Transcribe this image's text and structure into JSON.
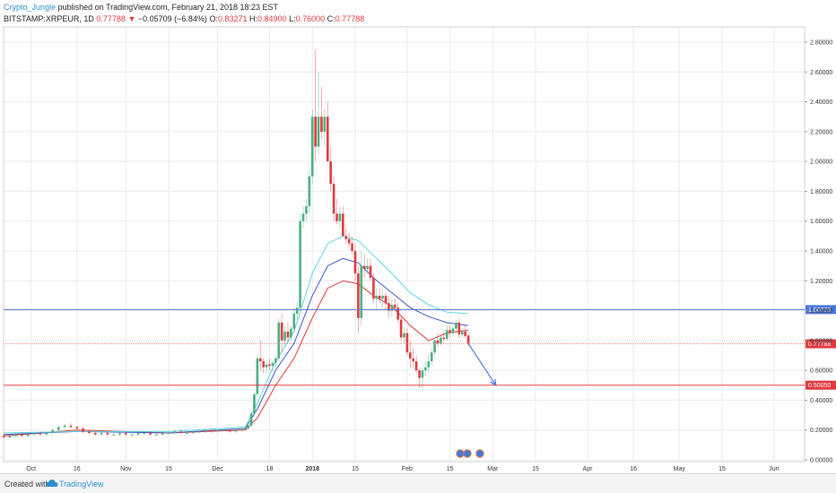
{
  "header": {
    "author": "Crypto_Jungle",
    "published_text": "published on TradingView.com, February 21, 2018 18:23 EST",
    "symbol": "BITSTAMP:XRPEUR, 1D",
    "last": "0.77788",
    "change": "−0.05709 (−6.84%)",
    "o_label": "O:",
    "o_val": "0.83271",
    "h_label": "H:",
    "h_val": "0.84900",
    "l_label": "L:",
    "l_val": "0.76000",
    "c_label": "C:",
    "c_val": "0.77788"
  },
  "footer": {
    "created_with": "Created with",
    "brand": "TradingView"
  },
  "colors": {
    "up": "#4caf82",
    "down": "#e03a3e",
    "grid": "#ececec",
    "ma_fast": "#e03a3e",
    "ma_mid": "#3a56c4",
    "ma_slow": "#5ed6e0",
    "support_line": "#4a78d8",
    "current_line": "#e98b8b",
    "target_line": "#e03a3e",
    "arrow": "#4a78d8"
  },
  "chart_data": {
    "type": "candlestick",
    "symbol": "BITSTAMP:XRPEUR",
    "interval": "1D",
    "x_tick_labels": [
      "Oct",
      "16",
      "Nov",
      "15",
      "Dec",
      "18",
      "2018",
      "15",
      "Feb",
      "15",
      "Mar",
      "15",
      "Apr",
      "16",
      "May",
      "15",
      "Jun"
    ],
    "y_tick_labels": [
      "0.00000",
      "0.20000",
      "0.40000",
      "0.60000",
      "0.80000",
      "1.00000",
      "1.20000",
      "1.40000",
      "1.60000",
      "1.80000",
      "2.00000",
      "2.20000",
      "2.40000",
      "2.60000",
      "2.80000"
    ],
    "ylim": [
      0.0,
      2.9
    ],
    "horizontal_levels": [
      {
        "value": 1.00729,
        "label": "1.00729",
        "kind": "support"
      },
      {
        "value": 0.77788,
        "label": "0.77788",
        "kind": "current"
      },
      {
        "value": 0.5005,
        "label": "0.50050",
        "kind": "target"
      }
    ],
    "projection_arrow": {
      "from_date": "2018-02-21",
      "from_value": 0.78,
      "to_date": "2018-03-02",
      "to_value": 0.5
    },
    "candles_ohlc": [
      [
        "2017-09-22",
        0.16,
        0.17,
        0.15,
        0.15
      ],
      [
        "2017-09-24",
        0.15,
        0.17,
        0.14,
        0.16
      ],
      [
        "2017-09-26",
        0.16,
        0.18,
        0.15,
        0.17
      ],
      [
        "2017-09-28",
        0.17,
        0.18,
        0.16,
        0.16
      ],
      [
        "2017-09-30",
        0.16,
        0.18,
        0.15,
        0.17
      ],
      [
        "2017-10-02",
        0.17,
        0.19,
        0.16,
        0.18
      ],
      [
        "2017-10-04",
        0.18,
        0.19,
        0.16,
        0.17
      ],
      [
        "2017-10-06",
        0.17,
        0.19,
        0.16,
        0.18
      ],
      [
        "2017-10-08",
        0.18,
        0.21,
        0.17,
        0.2
      ],
      [
        "2017-10-10",
        0.2,
        0.23,
        0.19,
        0.22
      ],
      [
        "2017-10-12",
        0.22,
        0.24,
        0.2,
        0.23
      ],
      [
        "2017-10-14",
        0.23,
        0.25,
        0.21,
        0.22
      ],
      [
        "2017-10-16",
        0.22,
        0.23,
        0.2,
        0.21
      ],
      [
        "2017-10-18",
        0.21,
        0.22,
        0.18,
        0.19
      ],
      [
        "2017-10-20",
        0.19,
        0.2,
        0.17,
        0.18
      ],
      [
        "2017-10-22",
        0.18,
        0.19,
        0.16,
        0.17
      ],
      [
        "2017-10-24",
        0.17,
        0.19,
        0.16,
        0.18
      ],
      [
        "2017-10-26",
        0.18,
        0.19,
        0.16,
        0.17
      ],
      [
        "2017-10-28",
        0.17,
        0.18,
        0.16,
        0.17
      ],
      [
        "2017-10-30",
        0.17,
        0.19,
        0.16,
        0.18
      ],
      [
        "2017-11-01",
        0.18,
        0.19,
        0.16,
        0.17
      ],
      [
        "2017-11-03",
        0.17,
        0.18,
        0.16,
        0.17
      ],
      [
        "2017-11-05",
        0.17,
        0.19,
        0.16,
        0.18
      ],
      [
        "2017-11-07",
        0.18,
        0.19,
        0.17,
        0.18
      ],
      [
        "2017-11-09",
        0.18,
        0.19,
        0.16,
        0.17
      ],
      [
        "2017-11-11",
        0.17,
        0.18,
        0.16,
        0.17
      ],
      [
        "2017-11-13",
        0.17,
        0.19,
        0.16,
        0.18
      ],
      [
        "2017-11-15",
        0.18,
        0.19,
        0.17,
        0.18
      ],
      [
        "2017-11-17",
        0.18,
        0.2,
        0.17,
        0.19
      ],
      [
        "2017-11-19",
        0.19,
        0.2,
        0.17,
        0.18
      ],
      [
        "2017-11-21",
        0.18,
        0.19,
        0.17,
        0.18
      ],
      [
        "2017-11-23",
        0.18,
        0.2,
        0.17,
        0.19
      ],
      [
        "2017-11-25",
        0.19,
        0.2,
        0.18,
        0.19
      ],
      [
        "2017-11-27",
        0.19,
        0.21,
        0.18,
        0.2
      ],
      [
        "2017-11-29",
        0.2,
        0.21,
        0.18,
        0.19
      ],
      [
        "2017-12-01",
        0.19,
        0.2,
        0.18,
        0.2
      ],
      [
        "2017-12-03",
        0.2,
        0.21,
        0.19,
        0.2
      ],
      [
        "2017-12-05",
        0.2,
        0.21,
        0.18,
        0.19
      ],
      [
        "2017-12-07",
        0.19,
        0.21,
        0.18,
        0.2
      ],
      [
        "2017-12-09",
        0.2,
        0.22,
        0.19,
        0.21
      ],
      [
        "2017-12-11",
        0.21,
        0.24,
        0.2,
        0.23
      ],
      [
        "2017-12-12",
        0.23,
        0.33,
        0.22,
        0.31
      ],
      [
        "2017-12-13",
        0.31,
        0.45,
        0.3,
        0.44
      ],
      [
        "2017-12-14",
        0.44,
        0.7,
        0.42,
        0.68
      ],
      [
        "2017-12-15",
        0.68,
        0.8,
        0.6,
        0.66
      ],
      [
        "2017-12-16",
        0.66,
        0.68,
        0.58,
        0.62
      ],
      [
        "2017-12-17",
        0.62,
        0.66,
        0.58,
        0.64
      ],
      [
        "2017-12-18",
        0.64,
        0.68,
        0.6,
        0.63
      ],
      [
        "2017-12-19",
        0.63,
        0.66,
        0.59,
        0.65
      ],
      [
        "2017-12-20",
        0.65,
        0.7,
        0.62,
        0.68
      ],
      [
        "2017-12-21",
        0.68,
        0.95,
        0.66,
        0.92
      ],
      [
        "2017-12-22",
        0.92,
        0.98,
        0.72,
        0.8
      ],
      [
        "2017-12-23",
        0.8,
        0.9,
        0.76,
        0.86
      ],
      [
        "2017-12-24",
        0.86,
        0.92,
        0.78,
        0.82
      ],
      [
        "2017-12-25",
        0.82,
        0.9,
        0.8,
        0.88
      ],
      [
        "2017-12-26",
        0.88,
        1.02,
        0.85,
        0.98
      ],
      [
        "2017-12-27",
        0.98,
        1.06,
        0.94,
        1.02
      ],
      [
        "2017-12-28",
        1.02,
        1.65,
        1.0,
        1.6
      ],
      [
        "2017-12-29",
        1.6,
        1.7,
        1.55,
        1.65
      ],
      [
        "2017-12-30",
        1.65,
        1.75,
        1.6,
        1.7
      ],
      [
        "2017-12-31",
        1.7,
        1.95,
        1.65,
        1.9
      ],
      [
        "2018-01-01",
        1.9,
        2.35,
        1.85,
        2.3
      ],
      [
        "2018-01-02",
        2.3,
        2.75,
        2.0,
        2.1
      ],
      [
        "2018-01-03",
        2.1,
        2.6,
        2.05,
        2.3
      ],
      [
        "2018-01-04",
        2.3,
        2.5,
        2.15,
        2.2
      ],
      [
        "2018-01-05",
        2.2,
        2.35,
        2.1,
        2.3
      ],
      [
        "2018-01-06",
        2.3,
        2.4,
        2.15,
        2.0
      ],
      [
        "2018-01-07",
        2.0,
        2.1,
        1.8,
        1.85
      ],
      [
        "2018-01-08",
        1.85,
        1.9,
        1.6,
        1.65
      ],
      [
        "2018-01-09",
        1.65,
        1.75,
        1.58,
        1.6
      ],
      [
        "2018-01-10",
        1.6,
        1.7,
        1.55,
        1.65
      ],
      [
        "2018-01-11",
        1.65,
        1.7,
        1.5,
        1.5
      ],
      [
        "2018-01-12",
        1.5,
        1.55,
        1.45,
        1.48
      ],
      [
        "2018-01-13",
        1.48,
        1.52,
        1.42,
        1.45
      ],
      [
        "2018-01-14",
        1.45,
        1.5,
        1.38,
        1.4
      ],
      [
        "2018-01-15",
        1.4,
        1.45,
        1.2,
        1.25
      ],
      [
        "2018-01-16",
        1.25,
        1.3,
        0.85,
        0.95
      ],
      [
        "2018-01-17",
        0.95,
        1.4,
        0.9,
        1.3
      ],
      [
        "2018-01-18",
        1.3,
        1.38,
        1.22,
        1.28
      ],
      [
        "2018-01-19",
        1.28,
        1.35,
        1.25,
        1.3
      ],
      [
        "2018-01-20",
        1.3,
        1.35,
        1.2,
        1.22
      ],
      [
        "2018-01-21",
        1.22,
        1.25,
        1.05,
        1.08
      ],
      [
        "2018-01-22",
        1.08,
        1.15,
        1.0,
        1.1
      ],
      [
        "2018-01-23",
        1.1,
        1.15,
        1.05,
        1.08
      ],
      [
        "2018-01-24",
        1.08,
        1.15,
        1.02,
        1.1
      ],
      [
        "2018-01-25",
        1.1,
        1.12,
        1.0,
        1.05
      ],
      [
        "2018-01-26",
        1.05,
        1.1,
        0.95,
        1.0
      ],
      [
        "2018-01-27",
        1.0,
        1.08,
        0.96,
        1.04
      ],
      [
        "2018-01-28",
        1.04,
        1.08,
        1.0,
        1.02
      ],
      [
        "2018-01-29",
        1.02,
        1.05,
        0.92,
        0.94
      ],
      [
        "2018-01-30",
        0.94,
        0.96,
        0.8,
        0.82
      ],
      [
        "2018-01-31",
        0.82,
        0.88,
        0.78,
        0.85
      ],
      [
        "2018-02-01",
        0.85,
        0.88,
        0.7,
        0.72
      ],
      [
        "2018-02-02",
        0.72,
        0.8,
        0.62,
        0.68
      ],
      [
        "2018-02-03",
        0.68,
        0.75,
        0.62,
        0.66
      ],
      [
        "2018-02-04",
        0.66,
        0.7,
        0.58,
        0.6
      ],
      [
        "2018-02-05",
        0.6,
        0.62,
        0.48,
        0.55
      ],
      [
        "2018-02-06",
        0.55,
        0.62,
        0.46,
        0.6
      ],
      [
        "2018-02-07",
        0.6,
        0.66,
        0.56,
        0.62
      ],
      [
        "2018-02-08",
        0.62,
        0.7,
        0.58,
        0.66
      ],
      [
        "2018-02-09",
        0.66,
        0.75,
        0.63,
        0.72
      ],
      [
        "2018-02-10",
        0.72,
        0.82,
        0.7,
        0.8
      ],
      [
        "2018-02-11",
        0.8,
        0.85,
        0.76,
        0.78
      ],
      [
        "2018-02-12",
        0.78,
        0.84,
        0.77,
        0.82
      ],
      [
        "2018-02-13",
        0.82,
        0.86,
        0.79,
        0.81
      ],
      [
        "2018-02-14",
        0.81,
        0.9,
        0.8,
        0.87
      ],
      [
        "2018-02-15",
        0.87,
        0.9,
        0.82,
        0.85
      ],
      [
        "2018-02-16",
        0.85,
        0.9,
        0.83,
        0.88
      ],
      [
        "2018-02-17",
        0.88,
        0.94,
        0.85,
        0.92
      ],
      [
        "2018-02-18",
        0.92,
        0.95,
        0.82,
        0.84
      ],
      [
        "2018-02-19",
        0.84,
        0.88,
        0.82,
        0.86
      ],
      [
        "2018-02-20",
        0.86,
        0.9,
        0.82,
        0.83
      ],
      [
        "2018-02-21",
        0.83271,
        0.849,
        0.76,
        0.77788
      ]
    ],
    "moving_averages": [
      {
        "color": "ma_fast",
        "points": [
          [
            "2017-09-22",
            0.16
          ],
          [
            "2017-10-16",
            0.2
          ],
          [
            "2017-11-15",
            0.18
          ],
          [
            "2017-12-10",
            0.2
          ],
          [
            "2017-12-14",
            0.28
          ],
          [
            "2017-12-20",
            0.5
          ],
          [
            "2017-12-26",
            0.68
          ],
          [
            "2018-01-01",
            0.95
          ],
          [
            "2018-01-06",
            1.15
          ],
          [
            "2018-01-11",
            1.2
          ],
          [
            "2018-01-16",
            1.18
          ],
          [
            "2018-01-21",
            1.1
          ],
          [
            "2018-01-27",
            1.03
          ],
          [
            "2018-02-02",
            0.9
          ],
          [
            "2018-02-08",
            0.8
          ],
          [
            "2018-02-14",
            0.85
          ],
          [
            "2018-02-21",
            0.87
          ]
        ]
      },
      {
        "color": "ma_mid",
        "points": [
          [
            "2017-09-22",
            0.17
          ],
          [
            "2017-10-16",
            0.19
          ],
          [
            "2017-11-15",
            0.18
          ],
          [
            "2017-12-10",
            0.21
          ],
          [
            "2017-12-14",
            0.34
          ],
          [
            "2017-12-20",
            0.6
          ],
          [
            "2017-12-26",
            0.78
          ],
          [
            "2018-01-01",
            1.1
          ],
          [
            "2018-01-06",
            1.3
          ],
          [
            "2018-01-11",
            1.35
          ],
          [
            "2018-01-16",
            1.32
          ],
          [
            "2018-01-21",
            1.22
          ],
          [
            "2018-01-27",
            1.12
          ],
          [
            "2018-02-02",
            1.02
          ],
          [
            "2018-02-08",
            0.96
          ],
          [
            "2018-02-14",
            0.92
          ],
          [
            "2018-02-21",
            0.9
          ]
        ]
      },
      {
        "color": "ma_slow",
        "points": [
          [
            "2017-09-22",
            0.18
          ],
          [
            "2017-10-16",
            0.19
          ],
          [
            "2017-11-15",
            0.19
          ],
          [
            "2017-12-10",
            0.22
          ],
          [
            "2017-12-14",
            0.38
          ],
          [
            "2017-12-20",
            0.66
          ],
          [
            "2017-12-26",
            0.86
          ],
          [
            "2018-01-01",
            1.25
          ],
          [
            "2018-01-06",
            1.45
          ],
          [
            "2018-01-11",
            1.5
          ],
          [
            "2018-01-16",
            1.47
          ],
          [
            "2018-01-21",
            1.37
          ],
          [
            "2018-01-27",
            1.25
          ],
          [
            "2018-02-02",
            1.12
          ],
          [
            "2018-02-08",
            1.04
          ],
          [
            "2018-02-14",
            0.99
          ],
          [
            "2018-02-21",
            0.98
          ]
        ]
      }
    ]
  }
}
